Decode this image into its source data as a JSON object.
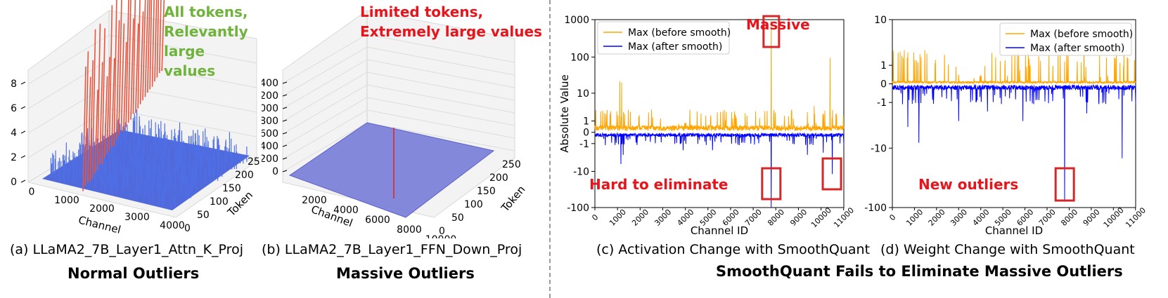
{
  "figure_title": "SmoothQuant Fails to Eliminate Massive Outliers",
  "colors": {
    "before": "#ffa500",
    "after": "#0000ff",
    "highlight": "#d62728",
    "green_text": "#6fb33a",
    "red_text": "#e8141c",
    "surface_blue": "#4a64dc",
    "surface_red": "#e8553f"
  },
  "panel_a": {
    "caption": "(a) LLaMA2_7B_Layer1_Attn_K_Proj",
    "group_label": "Normal Outliers",
    "annotation_line1": "All tokens,",
    "annotation_line2": "Relevantly large values",
    "z_ticks": [
      "0",
      "2",
      "4",
      "6",
      "8"
    ],
    "x_ticks": [
      "0",
      "1000",
      "2000",
      "3000",
      "4000"
    ],
    "y_ticks": [
      "0",
      "50",
      "100",
      "150",
      "200",
      "250"
    ],
    "x_label": "Channel",
    "y_label": "Token"
  },
  "panel_b": {
    "caption": "(b) LLaMA2_7B_Layer1_FFN_Down_Proj",
    "group_label": "Massive Outliers",
    "annotation_line1": "Limited tokens,",
    "annotation_line2": "Extremely large values",
    "z_ticks": [
      "0",
      "200",
      "400",
      "600",
      "800",
      "1000",
      "1200",
      "1400"
    ],
    "x_ticks": [
      "2000",
      "4000",
      "6000",
      "8000",
      "10000"
    ],
    "y_ticks": [
      "0",
      "50",
      "100",
      "150",
      "200",
      "250"
    ],
    "x_label": "Channel",
    "y_label": "Token"
  },
  "chart_data": [
    {
      "type": "line",
      "caption": "(c) Activation Change with SmoothQuant",
      "xlabel": "Channel ID",
      "ylabel": "Absolute Value",
      "yscale": "symlog",
      "ylim": [
        -100,
        1000
      ],
      "xlim": [
        0,
        11008
      ],
      "x_ticks": [
        "0",
        "1000",
        "2000",
        "3000",
        "4000",
        "5000",
        "6000",
        "7000",
        "8000",
        "9000",
        "10000",
        "11000"
      ],
      "y_ticks": [
        "1000",
        "100",
        "10",
        "1",
        "0",
        "-1",
        "-10",
        "-100"
      ],
      "legend_position": "upper-left",
      "series": [
        {
          "name": "Max (before smooth)",
          "color": "#ffa500",
          "baseline": 0.25,
          "spikes": [
            [
              1100,
              22
            ],
            [
              1180,
              20
            ],
            [
              4200,
              3
            ],
            [
              7800,
              1000
            ],
            [
              10400,
              95
            ],
            [
              2500,
              3
            ],
            [
              5800,
              2.5
            ],
            [
              8700,
              3
            ],
            [
              9700,
              4
            ]
          ]
        },
        {
          "name": "Max (after smooth)",
          "color": "#0000ff",
          "baseline": -0.15,
          "spikes": [
            [
              1150,
              -6
            ],
            [
              1250,
              -3
            ],
            [
              3900,
              -2
            ],
            [
              5200,
              -2
            ],
            [
              7800,
              -100
            ],
            [
              9400,
              -3
            ],
            [
              10100,
              -2.5
            ],
            [
              10500,
              -12
            ]
          ]
        }
      ],
      "annotations": [
        "Massive",
        "Hard to eliminate"
      ]
    },
    {
      "type": "line",
      "caption": "(d) Weight Change with SmoothQuant",
      "xlabel": "Channel ID",
      "ylabel": "",
      "yscale": "symlog",
      "ylim": [
        -100,
        10
      ],
      "xlim": [
        0,
        11008
      ],
      "x_ticks": [
        "0",
        "1000",
        "2000",
        "3000",
        "4000",
        "5000",
        "6000",
        "7000",
        "8000",
        "9000",
        "10000",
        "11000"
      ],
      "y_ticks": [
        "10",
        "1",
        "0",
        "-1",
        "-10",
        "-100"
      ],
      "legend_position": "upper-right",
      "series": [
        {
          "name": "Max (before smooth)",
          "color": "#ffa500",
          "baseline": 0.05,
          "spikes": [
            [
              1100,
              1.4
            ],
            [
              7800,
              1.3
            ],
            [
              10300,
              1.2
            ],
            [
              3000,
              0.4
            ],
            [
              5200,
              0.35
            ],
            [
              8700,
              0.3
            ]
          ]
        },
        {
          "name": "Max (after smooth)",
          "color": "#0000ff",
          "baseline": -0.12,
          "spikes": [
            [
              700,
              -4
            ],
            [
              1200,
              -8
            ],
            [
              3000,
              -3
            ],
            [
              5900,
              -3
            ],
            [
              7800,
              -80
            ],
            [
              10400,
              -15
            ],
            [
              8800,
              -2
            ],
            [
              4300,
              -1.8
            ]
          ]
        }
      ],
      "annotations": [
        "New outliers"
      ]
    }
  ]
}
